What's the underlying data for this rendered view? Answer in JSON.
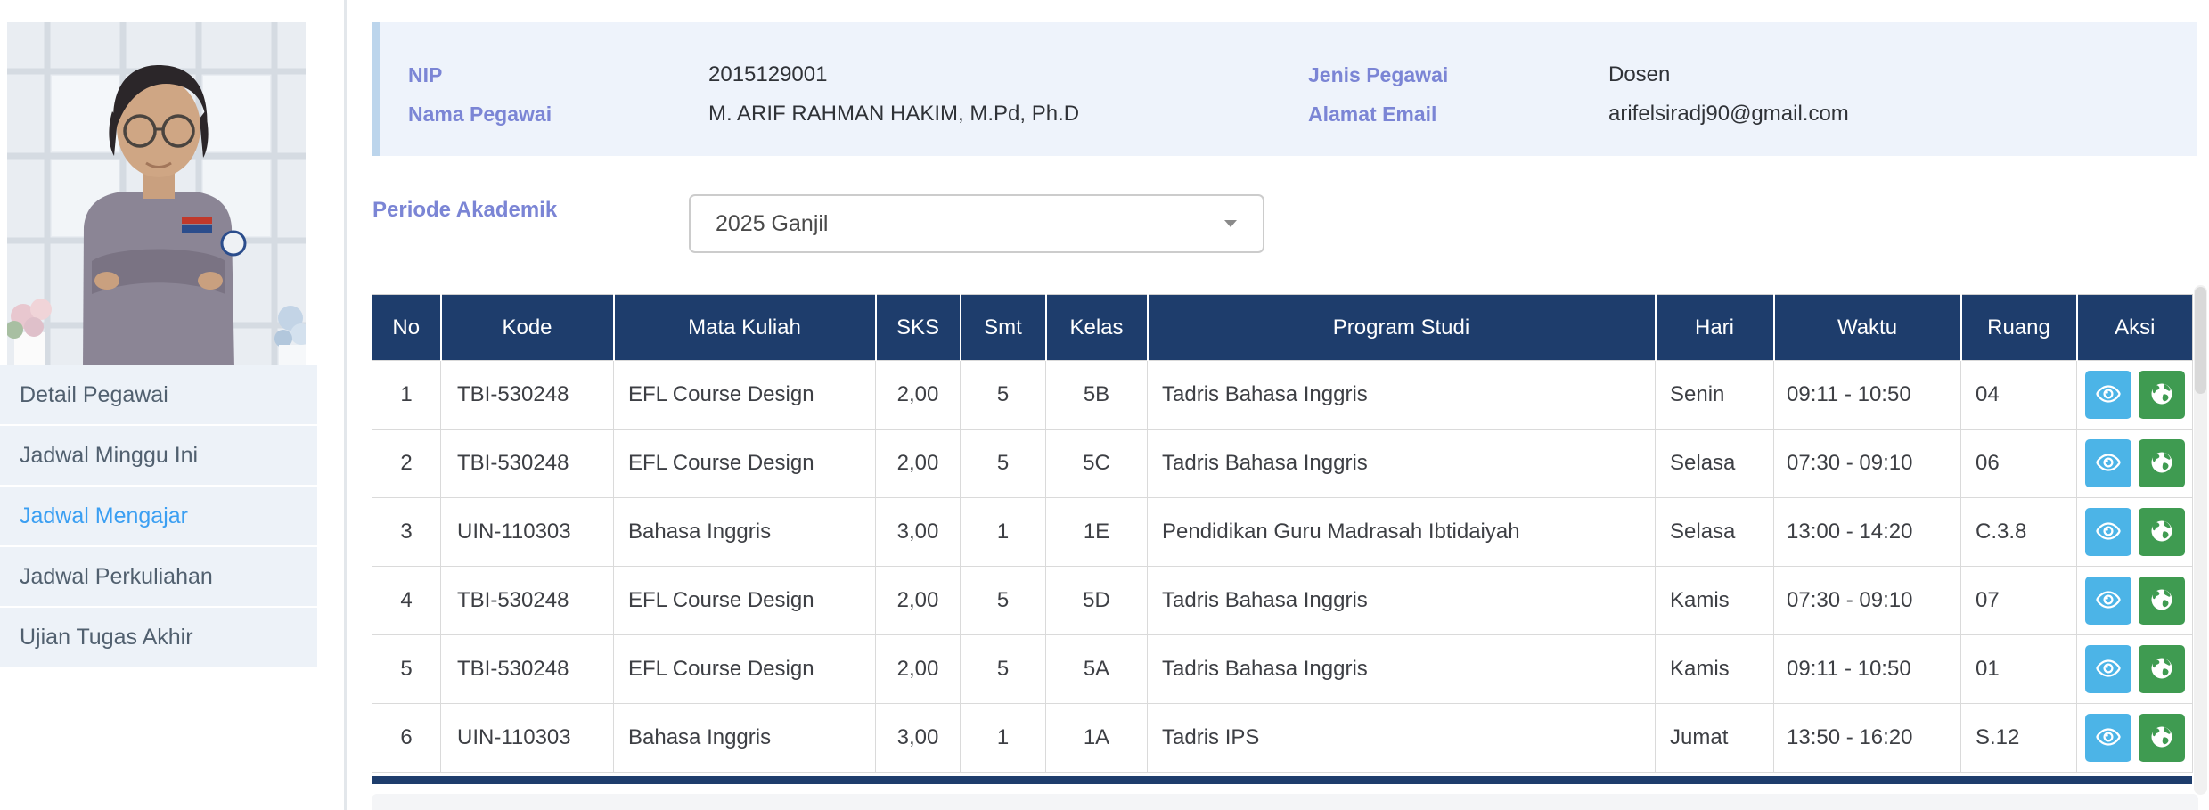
{
  "sidebar": {
    "items": [
      {
        "label": "Detail Pegawai",
        "active": false
      },
      {
        "label": "Jadwal Minggu Ini",
        "active": false
      },
      {
        "label": "Jadwal Mengajar",
        "active": true
      },
      {
        "label": "Jadwal Perkuliahan",
        "active": false
      },
      {
        "label": "Ujian Tugas Akhir",
        "active": false
      }
    ],
    "photo": "employee-portrait-photo"
  },
  "employee_info": {
    "fields": [
      {
        "label": "NIP",
        "value": "2015129001"
      },
      {
        "label": "Nama Pegawai",
        "value": "M. ARIF RAHMAN HAKIM, M.Pd, Ph.D"
      },
      {
        "label": "Jenis Pegawai",
        "value": "Dosen"
      },
      {
        "label": "Alamat Email",
        "value": "arifelsiradj90@gmail.com"
      }
    ]
  },
  "period": {
    "label": "Periode Akademik",
    "selected": "2025 Ganjil"
  },
  "table": {
    "columns": [
      "No",
      "Kode",
      "Mata Kuliah",
      "SKS",
      "Smt",
      "Kelas",
      "Program Studi",
      "Hari",
      "Waktu",
      "Ruang",
      "Aksi"
    ],
    "column_keys": [
      "no",
      "kode",
      "mata_kuliah",
      "sks",
      "smt",
      "kelas",
      "program_studi",
      "hari",
      "waktu",
      "ruang"
    ],
    "rows": [
      {
        "no": "1",
        "kode": "TBI-530248",
        "mata_kuliah": "EFL Course Design",
        "sks": "2,00",
        "smt": "5",
        "kelas": "5B",
        "program_studi": "Tadris Bahasa Inggris",
        "hari": "Senin",
        "waktu": "09:11 - 10:50",
        "ruang": "04"
      },
      {
        "no": "2",
        "kode": "TBI-530248",
        "mata_kuliah": "EFL Course Design",
        "sks": "2,00",
        "smt": "5",
        "kelas": "5C",
        "program_studi": "Tadris Bahasa Inggris",
        "hari": "Selasa",
        "waktu": "07:30 - 09:10",
        "ruang": "06"
      },
      {
        "no": "3",
        "kode": "UIN-110303",
        "mata_kuliah": "Bahasa Inggris",
        "sks": "3,00",
        "smt": "1",
        "kelas": "1E",
        "program_studi": "Pendidikan Guru Madrasah Ibtidaiyah",
        "hari": "Selasa",
        "waktu": "13:00 - 14:20",
        "ruang": "C.3.8"
      },
      {
        "no": "4",
        "kode": "TBI-530248",
        "mata_kuliah": "EFL Course Design",
        "sks": "2,00",
        "smt": "5",
        "kelas": "5D",
        "program_studi": "Tadris Bahasa Inggris",
        "hari": "Kamis",
        "waktu": "07:30 - 09:10",
        "ruang": "07"
      },
      {
        "no": "5",
        "kode": "TBI-530248",
        "mata_kuliah": "EFL Course Design",
        "sks": "2,00",
        "smt": "5",
        "kelas": "5A",
        "program_studi": "Tadris Bahasa Inggris",
        "hari": "Kamis",
        "waktu": "09:11 - 10:50",
        "ruang": "01"
      },
      {
        "no": "6",
        "kode": "UIN-110303",
        "mata_kuliah": "Bahasa Inggris",
        "sks": "3,00",
        "smt": "1",
        "kelas": "1A",
        "program_studi": "Tadris IPS",
        "hari": "Jumat",
        "waktu": "13:50 - 16:20",
        "ruang": "S.12"
      }
    ],
    "actions": [
      {
        "name": "view",
        "icon": "eye-icon",
        "color": "#4cb4e7"
      },
      {
        "name": "globe",
        "icon": "globe-icon",
        "color": "#3f9b51"
      }
    ]
  },
  "colors": {
    "header_navy": "#1e3d6c",
    "label_purple": "#7b85d5",
    "active_menu_blue": "#3b9ff2",
    "info_card_bg": "#eef3fb",
    "info_accent": "#bcd5ec",
    "menu_item_bg": "#edf2f8",
    "view_button": "#4cb4e7",
    "globe_button": "#3f9b51"
  }
}
